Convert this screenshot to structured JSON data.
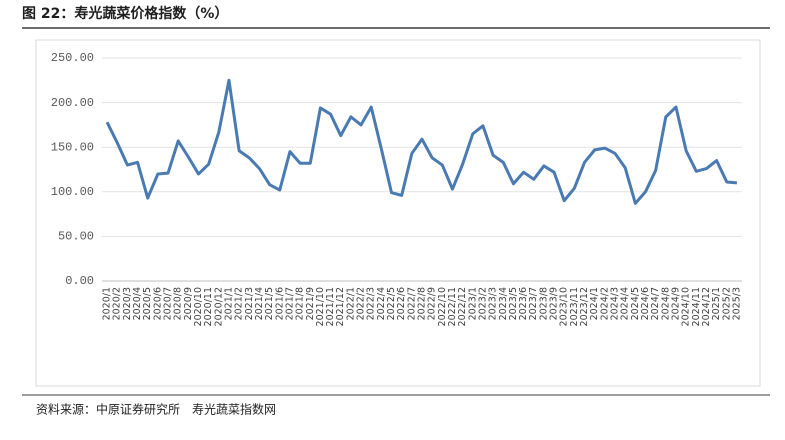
{
  "chart_data": {
    "type": "line",
    "title": "图 22：寿光蔬菜价格指数（%）",
    "source": "资料来源：中原证券研究所　寿光蔬菜指数网",
    "categories": [
      "2020/1",
      "2020/2",
      "2020/3",
      "2020/4",
      "2020/5",
      "2020/6",
      "2020/7",
      "2020/8",
      "2020/9",
      "2020/10",
      "2020/11",
      "2020/12",
      "2021/1",
      "2021/2",
      "2021/3",
      "2021/4",
      "2021/5",
      "2021/6",
      "2021/7",
      "2021/8",
      "2021/9",
      "2021/10",
      "2021/11",
      "2021/12",
      "2022/1",
      "2022/2",
      "2022/3",
      "2022/4",
      "2022/5",
      "2022/6",
      "2022/7",
      "2022/8",
      "2022/9",
      "2022/10",
      "2022/11",
      "2022/12",
      "2023/1",
      "2023/2",
      "2023/3",
      "2023/4",
      "2023/5",
      "2023/6",
      "2023/7",
      "2023/8",
      "2023/9",
      "2023/10",
      "2023/11",
      "2023/12",
      "2024/1",
      "2024/2",
      "2024/3",
      "2024/4",
      "2024/5",
      "2024/6",
      "2024/7",
      "2024/8",
      "2024/9",
      "2024/10",
      "2024/11",
      "2024/12",
      "2025/1",
      "2025/2",
      "2025/3"
    ],
    "series": [
      {
        "color": "#4a7ab2",
        "values": [
          178,
          155,
          130,
          133,
          93,
          120,
          121,
          157,
          139,
          120,
          131,
          167,
          225,
          146,
          138,
          126,
          108,
          102,
          145,
          132,
          132,
          194,
          187,
          163,
          184,
          175,
          195,
          148,
          99,
          96,
          143,
          159,
          138,
          130,
          103,
          131,
          165,
          174,
          141,
          133,
          109,
          122,
          114,
          129,
          122,
          90,
          104,
          133,
          147,
          149,
          143,
          127,
          87,
          100,
          124,
          184,
          195,
          146,
          123,
          126,
          135,
          111,
          110
        ]
      }
    ],
    "ylim": [
      0,
      250
    ],
    "yticks": [
      {
        "value": 0,
        "label": "0.00"
      },
      {
        "value": 50,
        "label": "50.00"
      },
      {
        "value": 100,
        "label": "100.00"
      },
      {
        "value": 150,
        "label": "150.00"
      },
      {
        "value": 200,
        "label": "200.00"
      },
      {
        "value": 250,
        "label": "250.00"
      }
    ],
    "grid": true
  }
}
